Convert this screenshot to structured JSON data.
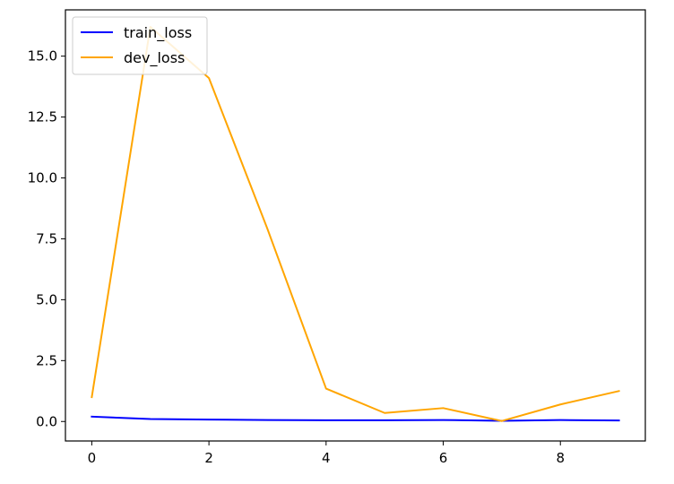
{
  "chart_data": {
    "type": "line",
    "title": "",
    "xlabel": "",
    "ylabel": "",
    "x": [
      0,
      1,
      2,
      3,
      4,
      5,
      6,
      7,
      8,
      9
    ],
    "xlim": [
      -0.45,
      9.45
    ],
    "ylim": [
      -0.8,
      16.9
    ],
    "xticks": [
      0,
      2,
      4,
      6,
      8
    ],
    "xtick_labels": [
      "0",
      "2",
      "4",
      "6",
      "8"
    ],
    "yticks": [
      0,
      2.5,
      5,
      7.5,
      10,
      12.5,
      15
    ],
    "ytick_labels": [
      "0.0",
      "2.5",
      "5.0",
      "7.5",
      "10.0",
      "12.5",
      "15.0"
    ],
    "grid": false,
    "legend_position": "top-left",
    "series": [
      {
        "name": "train_loss",
        "color": "#0000ff",
        "values": [
          0.2,
          0.1,
          0.08,
          0.06,
          0.05,
          0.05,
          0.06,
          0.03,
          0.06,
          0.04
        ]
      },
      {
        "name": "dev_loss",
        "color": "#ffa500",
        "values": [
          1.0,
          16.2,
          14.1,
          7.9,
          1.35,
          0.35,
          0.55,
          0.02,
          0.7,
          1.25
        ]
      }
    ]
  }
}
